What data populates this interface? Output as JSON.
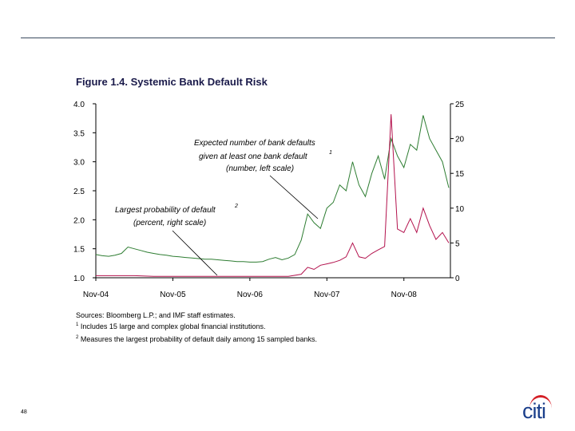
{
  "page": {
    "title": "Figure 1.4. Systemic Bank Default Risk",
    "page_number": "48",
    "logo_text": "citi"
  },
  "notes": {
    "sources": "Sources: Bloomberg L.P.; and IMF staff estimates.",
    "note1_mark": "1",
    "note1": "Includes 15 large and complex global financial institutions.",
    "note2_mark": "2",
    "note2": "Measures the largest probability of default daily among 15 sampled banks."
  },
  "chart_data": {
    "type": "line",
    "title": "Figure 1.4. Systemic Bank Default Risk",
    "x_tick_labels": [
      "Nov-04",
      "Nov-05",
      "Nov-06",
      "Nov-07",
      "Nov-08"
    ],
    "x_ticks": [
      "2004-11",
      "2005-11",
      "2006-11",
      "2007-11",
      "2008-11"
    ],
    "x_range": [
      "2004-11",
      "2009-06"
    ],
    "left_axis": {
      "range": [
        1.0,
        4.0
      ],
      "ticks": [
        "1.0",
        "1.5",
        "2.0",
        "2.5",
        "3.0",
        "3.5",
        "4.0"
      ]
    },
    "right_axis": {
      "range": [
        0,
        25
      ],
      "ticks": [
        "0",
        "5",
        "10",
        "15",
        "20",
        "25"
      ]
    },
    "grid": false,
    "legend": "none",
    "annotations": [
      {
        "lines": [
          "Expected number of bank defaults",
          "given at least one bank default",
          "(number, left scale)"
        ],
        "sup": "1"
      },
      {
        "lines": [
          "Largest probability of default",
          "(percent, right scale)"
        ],
        "sup": "2"
      }
    ],
    "series": [
      {
        "axis": "left",
        "color": "#2e7d32",
        "points": [
          [
            "2004-11",
            1.4
          ],
          [
            "2004-12",
            1.38
          ],
          [
            "2005-01",
            1.37
          ],
          [
            "2005-02",
            1.39
          ],
          [
            "2005-03",
            1.42
          ],
          [
            "2005-04",
            1.53
          ],
          [
            "2005-05",
            1.5
          ],
          [
            "2005-06",
            1.47
          ],
          [
            "2005-07",
            1.44
          ],
          [
            "2005-08",
            1.42
          ],
          [
            "2005-09",
            1.4
          ],
          [
            "2005-10",
            1.39
          ],
          [
            "2005-11",
            1.37
          ],
          [
            "2005-12",
            1.36
          ],
          [
            "2006-01",
            1.35
          ],
          [
            "2006-02",
            1.34
          ],
          [
            "2006-03",
            1.33
          ],
          [
            "2006-04",
            1.32
          ],
          [
            "2006-05",
            1.32
          ],
          [
            "2006-06",
            1.31
          ],
          [
            "2006-07",
            1.3
          ],
          [
            "2006-08",
            1.29
          ],
          [
            "2006-09",
            1.28
          ],
          [
            "2006-10",
            1.28
          ],
          [
            "2006-11",
            1.27
          ],
          [
            "2006-12",
            1.27
          ],
          [
            "2007-01",
            1.28
          ],
          [
            "2007-02",
            1.32
          ],
          [
            "2007-03",
            1.35
          ],
          [
            "2007-04",
            1.31
          ],
          [
            "2007-05",
            1.34
          ],
          [
            "2007-06",
            1.4
          ],
          [
            "2007-07",
            1.65
          ],
          [
            "2007-08",
            2.1
          ],
          [
            "2007-09",
            1.95
          ],
          [
            "2007-10",
            1.85
          ],
          [
            "2007-11",
            2.2
          ],
          [
            "2007-12",
            2.3
          ],
          [
            "2008-01",
            2.6
          ],
          [
            "2008-02",
            2.5
          ],
          [
            "2008-03",
            3.0
          ],
          [
            "2008-04",
            2.6
          ],
          [
            "2008-05",
            2.4
          ],
          [
            "2008-06",
            2.8
          ],
          [
            "2008-07",
            3.1
          ],
          [
            "2008-08",
            2.7
          ],
          [
            "2008-09",
            3.4
          ],
          [
            "2008-10",
            3.1
          ],
          [
            "2008-11",
            2.9
          ],
          [
            "2008-12",
            3.3
          ],
          [
            "2009-01",
            3.2
          ],
          [
            "2009-02",
            3.8
          ],
          [
            "2009-03",
            3.4
          ],
          [
            "2009-04",
            3.2
          ],
          [
            "2009-05",
            3.0
          ],
          [
            "2009-06",
            2.55
          ]
        ]
      },
      {
        "axis": "right",
        "color": "#b3124d",
        "points": [
          [
            "2004-11",
            0.3
          ],
          [
            "2005-02",
            0.3
          ],
          [
            "2005-05",
            0.3
          ],
          [
            "2005-08",
            0.2
          ],
          [
            "2005-11",
            0.2
          ],
          [
            "2006-02",
            0.2
          ],
          [
            "2006-05",
            0.2
          ],
          [
            "2006-08",
            0.2
          ],
          [
            "2006-11",
            0.2
          ],
          [
            "2007-02",
            0.2
          ],
          [
            "2007-05",
            0.2
          ],
          [
            "2007-07",
            0.5
          ],
          [
            "2007-08",
            1.5
          ],
          [
            "2007-09",
            1.2
          ],
          [
            "2007-10",
            1.8
          ],
          [
            "2007-11",
            2.0
          ],
          [
            "2007-12",
            2.2
          ],
          [
            "2008-01",
            2.5
          ],
          [
            "2008-02",
            3.0
          ],
          [
            "2008-03",
            5.0
          ],
          [
            "2008-04",
            3.0
          ],
          [
            "2008-05",
            2.8
          ],
          [
            "2008-06",
            3.5
          ],
          [
            "2008-07",
            4.0
          ],
          [
            "2008-08",
            4.5
          ],
          [
            "2008-09",
            23.5
          ],
          [
            "2008-10",
            7.0
          ],
          [
            "2008-11",
            6.5
          ],
          [
            "2008-12",
            8.5
          ],
          [
            "2009-01",
            6.5
          ],
          [
            "2009-02",
            10.0
          ],
          [
            "2009-03",
            7.5
          ],
          [
            "2009-04",
            5.5
          ],
          [
            "2009-05",
            6.5
          ],
          [
            "2009-06",
            5.0
          ]
        ]
      }
    ]
  }
}
